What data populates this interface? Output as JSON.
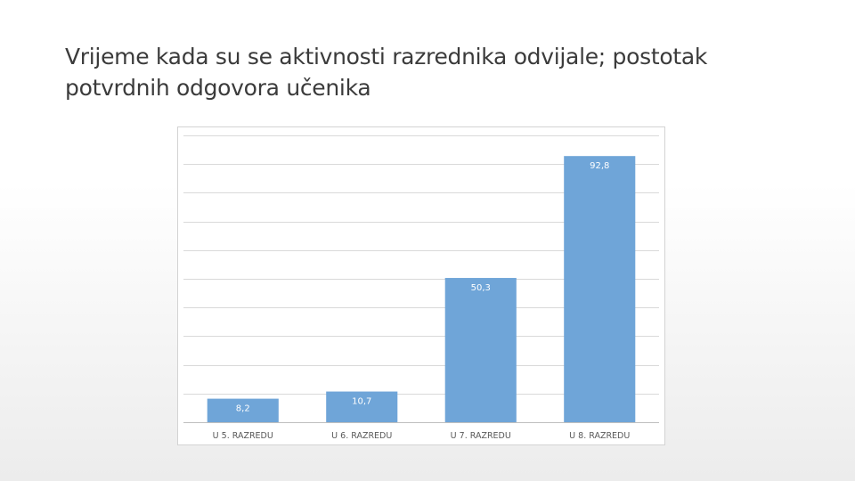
{
  "slide": {
    "title": "Vrijeme kada su se aktivnosti razrednika odvijale; postotak potvrdnih odgovora učenika"
  },
  "colors": {
    "bar": "#6fa5d8",
    "gridline": "#d9d9d9",
    "axis": "#bfbfbf",
    "bar_label": "#ffffff",
    "tick_label": "#595959"
  },
  "chart_data": {
    "type": "bar",
    "categories": [
      "U 5. RAZREDU",
      "U 6. RAZREDU",
      "U 7. RAZREDU",
      "U 8. RAZREDU"
    ],
    "values": [
      8.2,
      10.7,
      50.3,
      92.8
    ],
    "data_labels": [
      "8,2",
      "10,7",
      "50,3",
      "92,8"
    ],
    "ylim": [
      0,
      100
    ],
    "grid": true,
    "legend": "none"
  }
}
